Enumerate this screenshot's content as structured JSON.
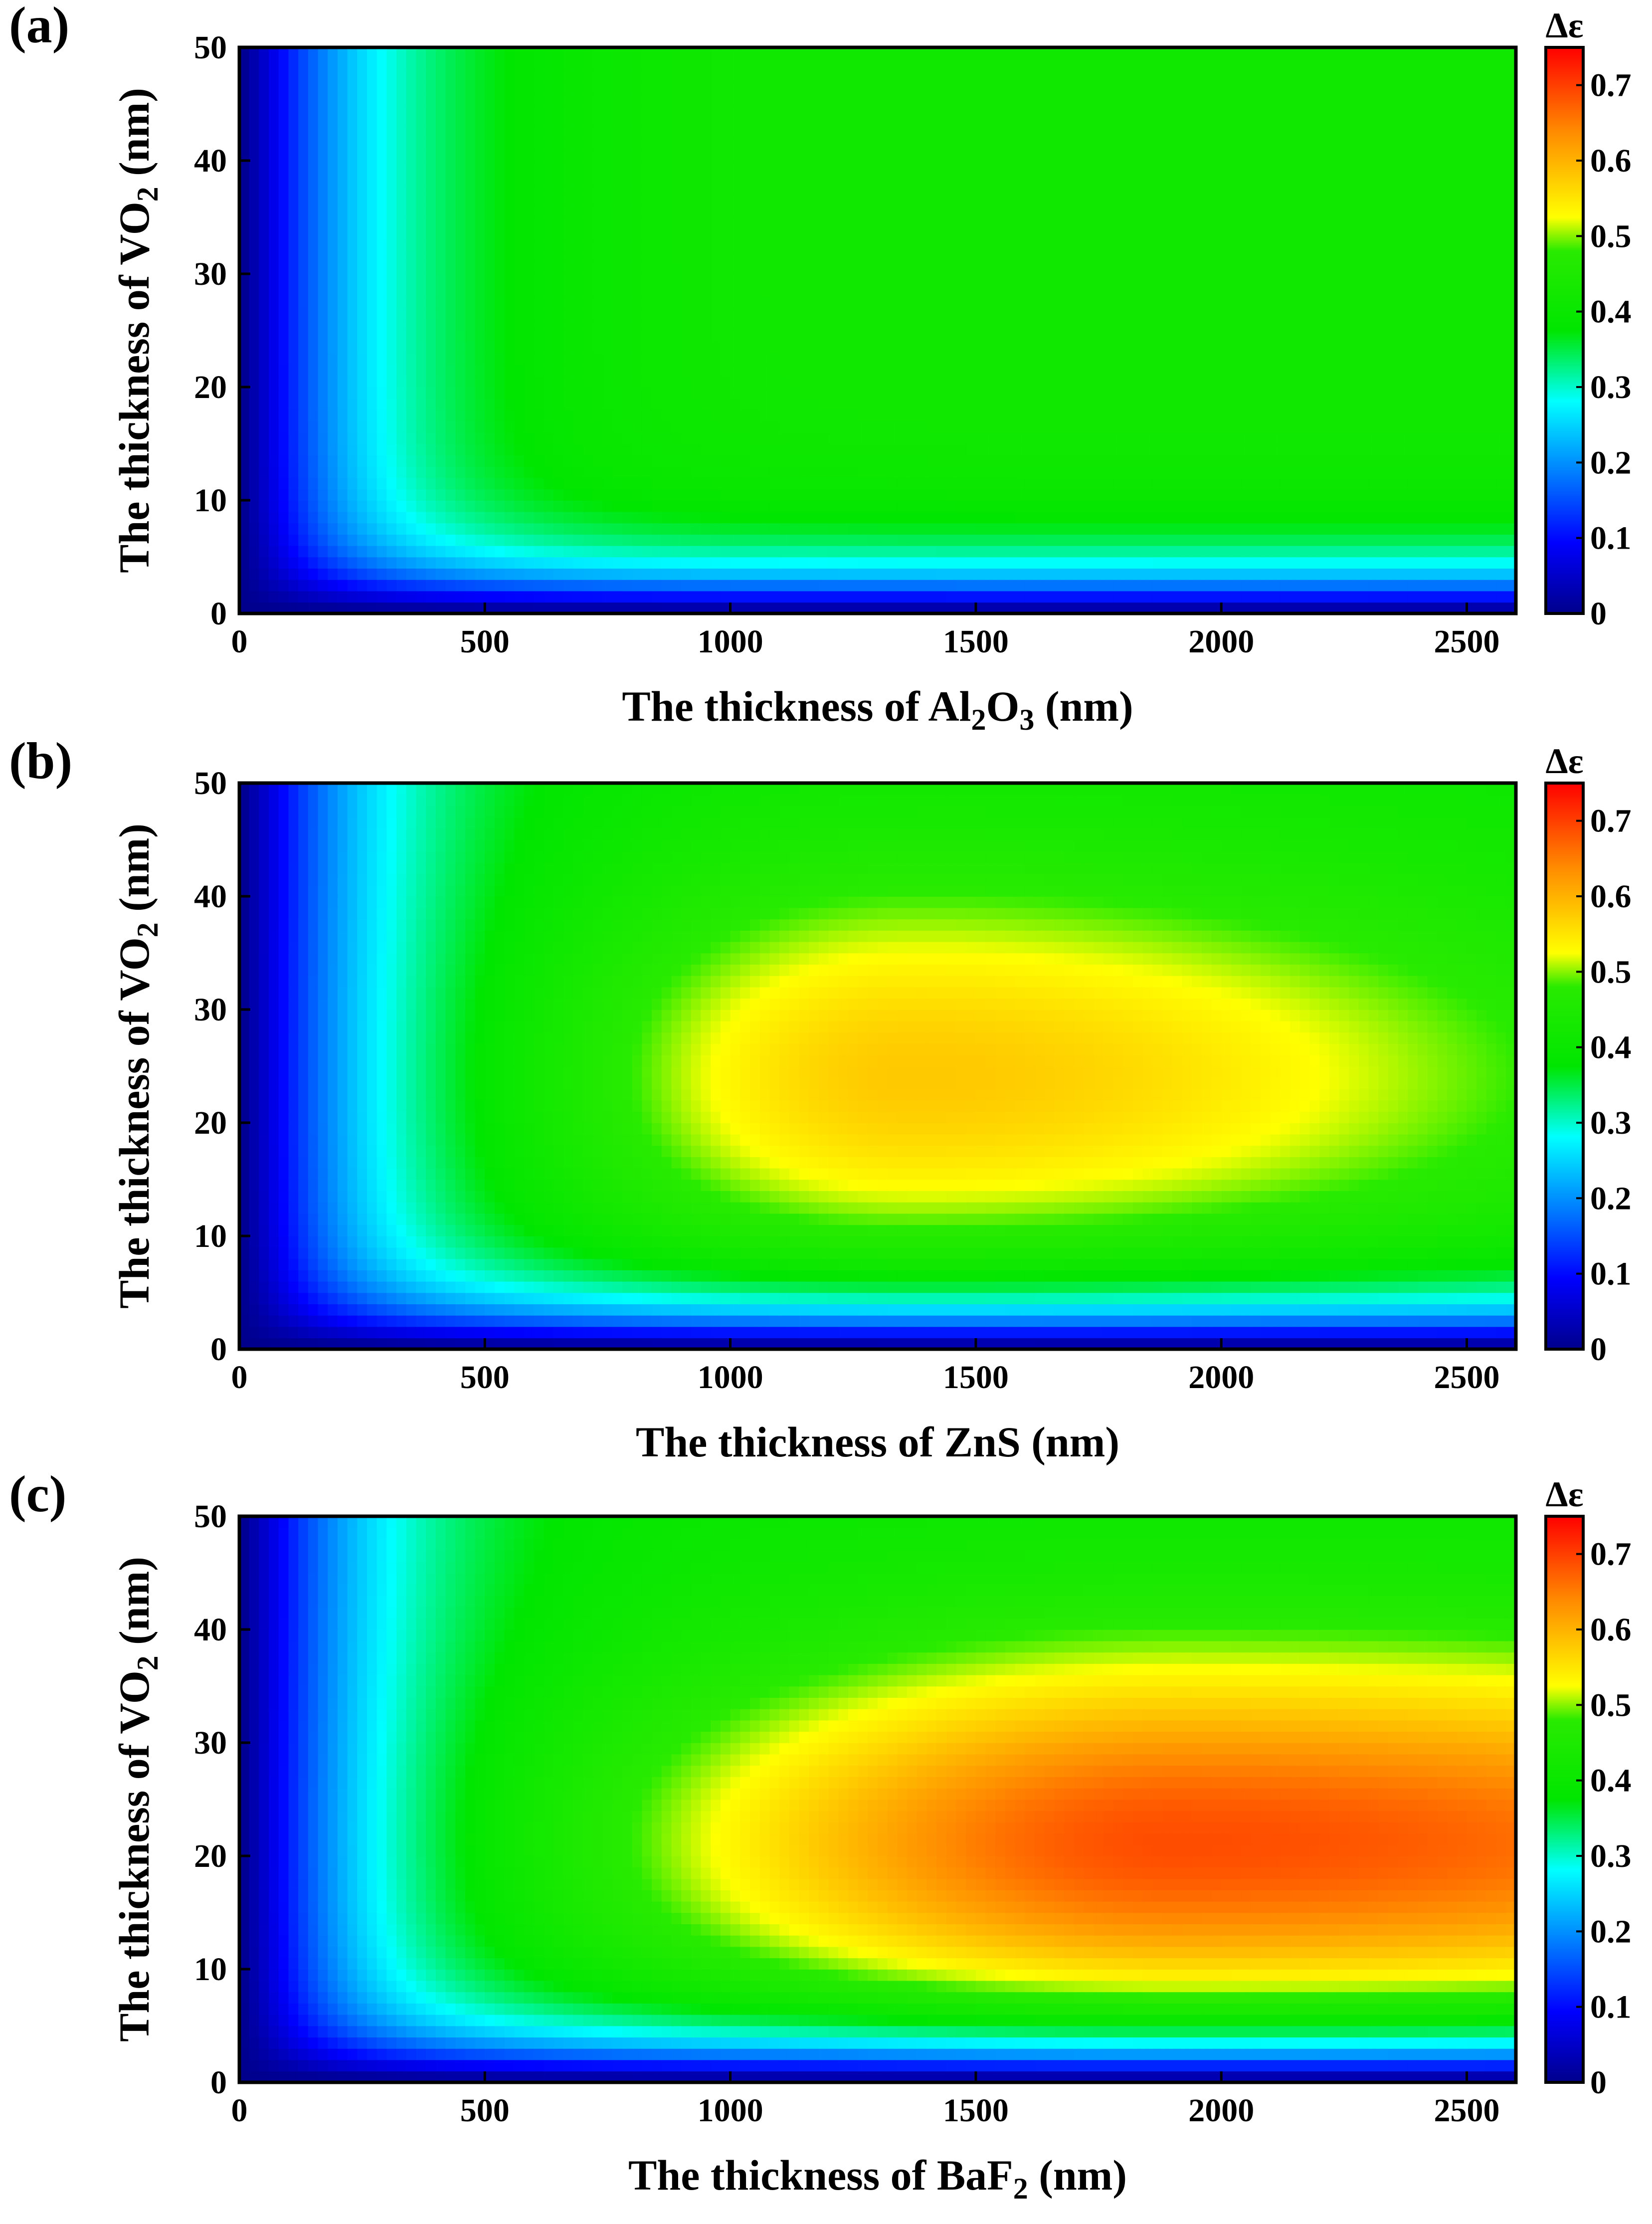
{
  "chart_data": [
    {
      "type": "heatmap",
      "panel_label": "(a)",
      "title": "",
      "xlabel": {
        "prefix": "The thickness of Al",
        "sub1": "2",
        "mid": "O",
        "sub2": "3",
        "suffix": " (nm)"
      },
      "ylabel": {
        "prefix": "The thickness of VO",
        "sub1": "2",
        "suffix": " (nm)"
      },
      "xlim": [
        0,
        2600
      ],
      "ylim": [
        0,
        50
      ],
      "x_ticks": [
        "0",
        "500",
        "1000",
        "1500",
        "2000",
        "2500"
      ],
      "y_ticks": [
        "0",
        "10",
        "20",
        "30",
        "40",
        "50"
      ],
      "x": [
        0,
        200,
        400,
        600,
        800,
        1000,
        1200,
        1400,
        1600,
        1800,
        2000,
        2200,
        2400,
        2600
      ],
      "y": [
        0,
        5,
        10,
        15,
        20,
        25,
        30,
        35,
        40,
        45,
        50
      ],
      "model": {
        "A_max": 0.42,
        "A_min": 0.42,
        "x_peak": 1000,
        "y_peak": 28,
        "sig_x_left": 600,
        "sig_x_right": 1600,
        "sig_y": 14,
        "bias": 0.0
      },
      "colorbar": {
        "label": "Δε",
        "min": 0,
        "max": 0.75,
        "ticks": [
          "0",
          "0.1",
          "0.2",
          "0.3",
          "0.4",
          "0.5",
          "0.6",
          "0.7"
        ]
      }
    },
    {
      "type": "heatmap",
      "panel_label": "(b)",
      "title": "",
      "xlabel": {
        "prefix": "The thickness of ZnS",
        "sub1": "",
        "mid": "",
        "sub2": "",
        "suffix": " (nm)"
      },
      "ylabel": {
        "prefix": "The thickness of VO",
        "sub1": "2",
        "suffix": " (nm)"
      },
      "xlim": [
        0,
        2600
      ],
      "ylim": [
        0,
        50
      ],
      "x_ticks": [
        "0",
        "500",
        "1000",
        "1500",
        "2000",
        "2500"
      ],
      "y_ticks": [
        "0",
        "10",
        "20",
        "30",
        "40",
        "50"
      ],
      "x": [
        0,
        200,
        400,
        600,
        800,
        1000,
        1200,
        1400,
        1600,
        1800,
        2000,
        2200,
        2400,
        2600
      ],
      "y": [
        0,
        5,
        10,
        15,
        20,
        25,
        30,
        35,
        40,
        45,
        50
      ],
      "model": {
        "A_max": 0.58,
        "A_min": 0.4,
        "x_peak": 1350,
        "y_peak": 24,
        "sig_x_left": 500,
        "sig_x_right": 1000,
        "sig_y": 13,
        "bias": -0.1
      },
      "colorbar": {
        "label": "Δε",
        "min": 0,
        "max": 0.75,
        "ticks": [
          "0",
          "0.1",
          "0.2",
          "0.3",
          "0.4",
          "0.5",
          "0.6",
          "0.7"
        ]
      }
    },
    {
      "type": "heatmap",
      "panel_label": "(c)",
      "title": "",
      "xlabel": {
        "prefix": "The thickness of BaF",
        "sub1": "2",
        "mid": "",
        "sub2": "",
        "suffix": " (nm)"
      },
      "ylabel": {
        "prefix": "The thickness of VO",
        "sub1": "2",
        "suffix": " (nm)"
      },
      "xlim": [
        0,
        2600
      ],
      "ylim": [
        0,
        50
      ],
      "x_ticks": [
        "0",
        "500",
        "1000",
        "1500",
        "2000",
        "2500"
      ],
      "y_ticks": [
        "0",
        "10",
        "20",
        "30",
        "40",
        "50"
      ],
      "x": [
        0,
        200,
        400,
        600,
        800,
        1000,
        1200,
        1400,
        1600,
        1800,
        2000,
        2200,
        2400,
        2600
      ],
      "y": [
        0,
        5,
        10,
        15,
        20,
        25,
        30,
        35,
        40,
        45,
        50
      ],
      "model": {
        "A_max": 0.69,
        "A_min": 0.4,
        "x_peak": 1900,
        "y_peak": 21,
        "sig_x_left": 750,
        "sig_x_right": 1600,
        "sig_y": 12,
        "bias": 0.0
      },
      "colorbar": {
        "label": "Δε",
        "min": 0,
        "max": 0.75,
        "ticks": [
          "0",
          "0.1",
          "0.2",
          "0.3",
          "0.4",
          "0.5",
          "0.6",
          "0.7"
        ]
      }
    }
  ]
}
